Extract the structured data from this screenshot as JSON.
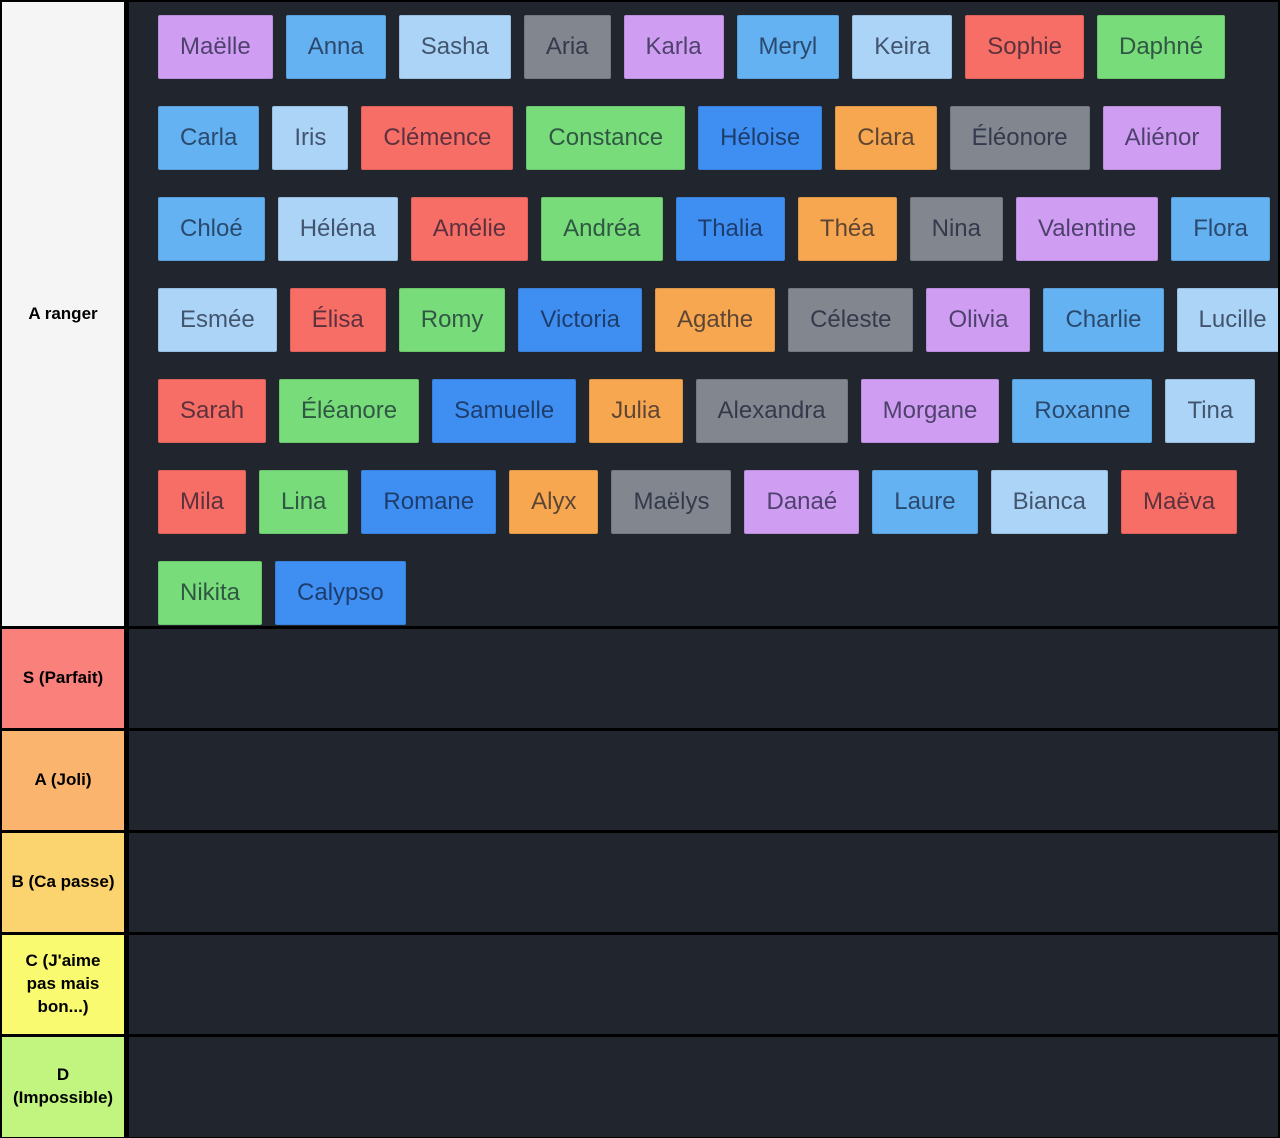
{
  "board": {
    "background": "#21252d",
    "border_color": "#000000",
    "tile_text_color": "rgba(12,18,40,0.66)"
  },
  "palette": {
    "purple": "#cf9df2",
    "blue": "#64b2f2",
    "lightblue": "#abd4f7",
    "gray": "#81868f",
    "red": "#f76e66",
    "green": "#77dc79",
    "royalblue": "#3f8ff3",
    "orange": "#f7a74f"
  },
  "tiers": [
    {
      "id": "pool",
      "label": "A ranger",
      "label_color": "#f5f5f5",
      "kind": "pool",
      "rows": [
        [
          {
            "name": "Maëlle",
            "color": "purple"
          },
          {
            "name": "Anna",
            "color": "blue"
          },
          {
            "name": "Sasha",
            "color": "lightblue"
          },
          {
            "name": "Aria",
            "color": "gray"
          },
          {
            "name": "Karla",
            "color": "purple"
          },
          {
            "name": "Meryl",
            "color": "blue"
          },
          {
            "name": "Keira",
            "color": "lightblue"
          },
          {
            "name": "Sophie",
            "color": "red"
          },
          {
            "name": "Daphné",
            "color": "green"
          }
        ],
        [
          {
            "name": "Carla",
            "color": "blue"
          },
          {
            "name": "Iris",
            "color": "lightblue"
          },
          {
            "name": "Clémence",
            "color": "red"
          },
          {
            "name": "Constance",
            "color": "green"
          },
          {
            "name": "Héloise",
            "color": "royalblue"
          },
          {
            "name": "Clara",
            "color": "orange"
          },
          {
            "name": "Éléonore",
            "color": "gray"
          },
          {
            "name": "Aliénor",
            "color": "purple"
          }
        ],
        [
          {
            "name": "Chloé",
            "color": "blue"
          },
          {
            "name": "Héléna",
            "color": "lightblue"
          },
          {
            "name": "Amélie",
            "color": "red"
          },
          {
            "name": "Andréa",
            "color": "green"
          },
          {
            "name": "Thalia",
            "color": "royalblue"
          },
          {
            "name": "Théa",
            "color": "orange"
          },
          {
            "name": "Nina",
            "color": "gray"
          },
          {
            "name": "Valentine",
            "color": "purple"
          },
          {
            "name": "Flora",
            "color": "blue"
          }
        ],
        [
          {
            "name": "Esmée",
            "color": "lightblue"
          },
          {
            "name": "Élisa",
            "color": "red"
          },
          {
            "name": "Romy",
            "color": "green"
          },
          {
            "name": "Victoria",
            "color": "royalblue"
          },
          {
            "name": "Agathe",
            "color": "orange"
          },
          {
            "name": "Céleste",
            "color": "gray"
          },
          {
            "name": "Olivia",
            "color": "purple"
          },
          {
            "name": "Charlie",
            "color": "blue"
          },
          {
            "name": "Lucille",
            "color": "lightblue"
          }
        ],
        [
          {
            "name": "Sarah",
            "color": "red"
          },
          {
            "name": "Éléanore",
            "color": "green"
          },
          {
            "name": "Samuelle",
            "color": "royalblue"
          },
          {
            "name": "Julia",
            "color": "orange"
          },
          {
            "name": "Alexandra",
            "color": "gray"
          },
          {
            "name": "Morgane",
            "color": "purple"
          },
          {
            "name": "Roxanne",
            "color": "blue"
          },
          {
            "name": "Tina",
            "color": "lightblue"
          }
        ],
        [
          {
            "name": "Mila",
            "color": "red"
          },
          {
            "name": "Lina",
            "color": "green"
          },
          {
            "name": "Romane",
            "color": "royalblue"
          },
          {
            "name": "Alyx",
            "color": "orange"
          },
          {
            "name": "Maëlys",
            "color": "gray"
          },
          {
            "name": "Danaé",
            "color": "purple"
          },
          {
            "name": "Laure",
            "color": "blue"
          },
          {
            "name": "Bianca",
            "color": "lightblue"
          },
          {
            "name": "Maëva",
            "color": "red"
          }
        ],
        [
          {
            "name": "Nikita",
            "color": "green"
          },
          {
            "name": "Calypso",
            "color": "royalblue"
          }
        ]
      ]
    },
    {
      "id": "s",
      "label": "S (Parfait)",
      "label_color": "#fa807c",
      "kind": "ranked",
      "rows": []
    },
    {
      "id": "a",
      "label": "A (Joli)",
      "label_color": "#fbb46e",
      "kind": "ranked",
      "rows": []
    },
    {
      "id": "b",
      "label": "B (Ca passe)",
      "label_color": "#fbd36f",
      "kind": "ranked",
      "rows": []
    },
    {
      "id": "c",
      "label": "C (J'aime pas mais bon...)",
      "label_color": "#fafa70",
      "kind": "ranked",
      "rows": []
    },
    {
      "id": "d",
      "label": "D (Impossible)",
      "label_color": "#c2f57f",
      "kind": "ranked",
      "rows": []
    }
  ]
}
